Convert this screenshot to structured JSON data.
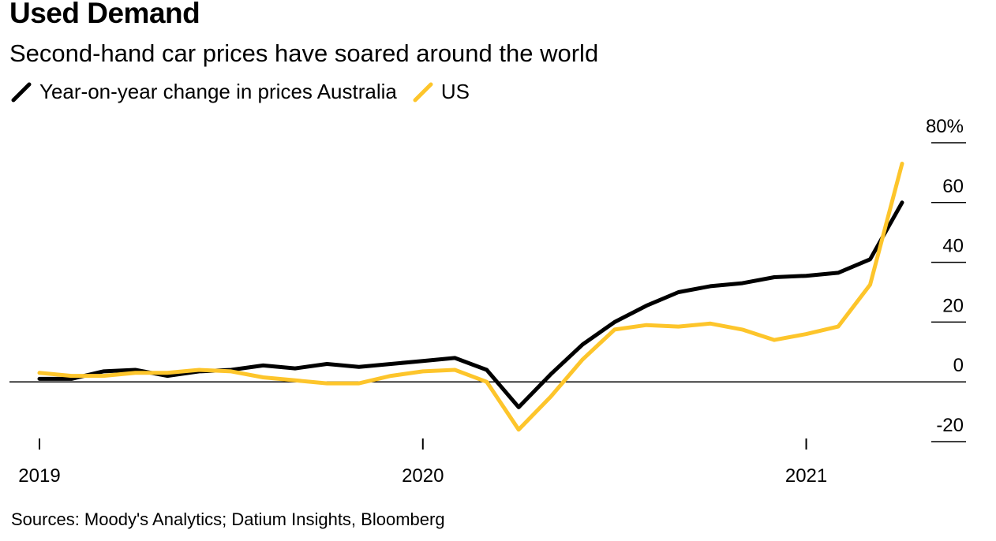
{
  "title": "Used Demand",
  "subtitle": "Second-hand car prices have soared around the world",
  "source": "Sources: Moody's Analytics; Datium Insights, Bloomberg",
  "colors": {
    "australia": "#000000",
    "us": "#fdc52b",
    "axis": "#000000"
  },
  "chart_data": {
    "type": "line",
    "title": "Used Demand",
    "subtitle": "Second-hand car prices have soared around the world",
    "legend": [
      "Year-on-year change in prices Australia",
      "US"
    ],
    "legend_placement": "top-left",
    "x": [
      "2019-01",
      "2019-02",
      "2019-03",
      "2019-04",
      "2019-05",
      "2019-06",
      "2019-07",
      "2019-08",
      "2019-09",
      "2019-10",
      "2019-11",
      "2019-12",
      "2020-01",
      "2020-02",
      "2020-03",
      "2020-04",
      "2020-05",
      "2020-06",
      "2020-07",
      "2020-08",
      "2020-09",
      "2020-10",
      "2020-11",
      "2020-12",
      "2021-01",
      "2021-02",
      "2021-03",
      "2021-04"
    ],
    "series": [
      {
        "name": "Year-on-year change in prices Australia",
        "color": "#000000",
        "values": [
          1,
          1,
          3.5,
          4,
          2,
          3.5,
          4,
          5.5,
          4.5,
          6,
          5,
          6,
          7,
          8,
          4,
          -8.5,
          2.5,
          12.5,
          20,
          25.5,
          30,
          32,
          33,
          35,
          35.5,
          36.5,
          41,
          60
        ]
      },
      {
        "name": "US",
        "color": "#fdc52b",
        "values": [
          3,
          2,
          2,
          3,
          3,
          4,
          3.5,
          1.5,
          0.5,
          -0.5,
          -0.5,
          2,
          3.5,
          4,
          0,
          -16,
          -5,
          7.5,
          17.5,
          19,
          18.5,
          19.5,
          17.5,
          14,
          16,
          18.5,
          32.5,
          73
        ]
      }
    ],
    "y_ticks": [
      "80%",
      "60",
      "40",
      "20",
      "0",
      "-20"
    ],
    "y_tick_values": [
      80,
      60,
      40,
      20,
      0,
      -20
    ],
    "x_ticks": [
      "2019",
      "2020",
      "2021"
    ],
    "ylim": [
      -20,
      80
    ],
    "xlim": [
      "2019-01",
      "2021-04"
    ],
    "y_axis_side": "right",
    "grid": false
  }
}
